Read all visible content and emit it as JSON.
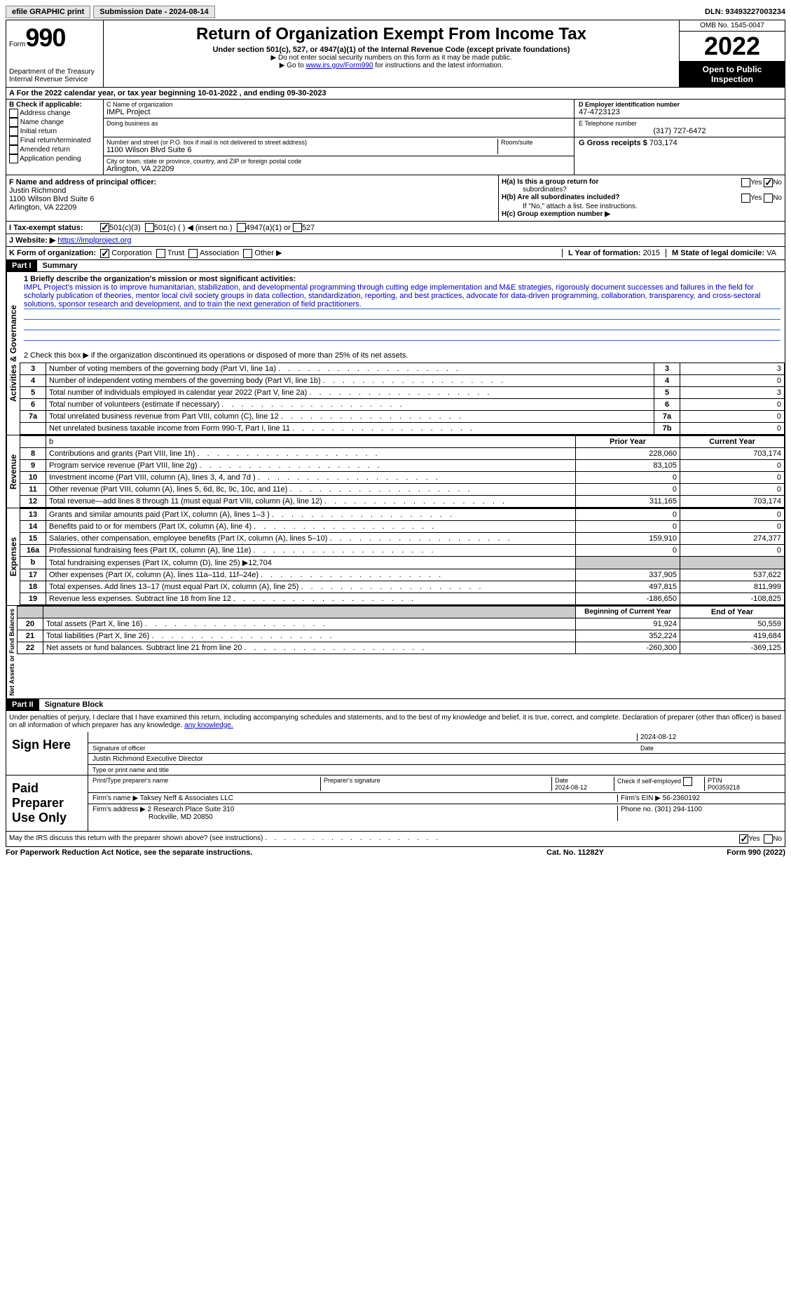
{
  "topbar": {
    "efile": "efile GRAPHIC print",
    "submission": "Submission Date - 2024-08-14",
    "dln": "DLN: 93493227003234"
  },
  "header": {
    "form_label": "Form",
    "form_no": "990",
    "dept": "Department of the Treasury",
    "irs": "Internal Revenue Service",
    "title": "Return of Organization Exempt From Income Tax",
    "subtitle": "Under section 501(c), 527, or 4947(a)(1) of the Internal Revenue Code (except private foundations)",
    "note1": "▶ Do not enter social security numbers on this form as it may be made public.",
    "note2_pre": "▶ Go to ",
    "note2_link": "www.irs.gov/Form990",
    "note2_post": " for instructions and the latest information.",
    "omb": "OMB No. 1545-0047",
    "year": "2022",
    "open": "Open to Public Inspection"
  },
  "row_a": "A For the 2022 calendar year, or tax year beginning 10-01-2022     , and ending 09-30-2023",
  "col_b": {
    "title": "B Check if applicable:",
    "items": [
      "Address change",
      "Name change",
      "Initial return",
      "Final return/terminated",
      "Amended return",
      "Application pending"
    ]
  },
  "col_c": {
    "name_label": "C Name of organization",
    "name": "IMPL Project",
    "dba": "Doing business as",
    "street_label": "Number and street (or P.O. box if mail is not delivered to street address)",
    "room": "Room/suite",
    "street": "1100 Wilson Blvd Suite 6",
    "city_label": "City or town, state or province, country, and ZIP or foreign postal code",
    "city": "Arlington, VA  22209"
  },
  "col_d": {
    "ein_label": "D Employer identification number",
    "ein": "47-4723123",
    "phone_label": "E Telephone number",
    "phone": "(317) 727-6472",
    "gross_label": "G Gross receipts $",
    "gross": "703,174"
  },
  "f": {
    "label": "F Name and address of principal officer:",
    "name": "Justin Richmond",
    "addr1": "1100 Wilson Blvd Suite 6",
    "addr2": "Arlington, VA  22209"
  },
  "h": {
    "ha": "H(a)  Is this a group return for",
    "ha2": "subordinates?",
    "hb": "H(b)  Are all subordinates included?",
    "hb2": "If \"No,\" attach a list. See instructions.",
    "hc": "H(c)  Group exemption number ▶",
    "yes": "Yes",
    "no": "No"
  },
  "i": {
    "label": "I   Tax-exempt status:",
    "opts": [
      "501(c)(3)",
      "501(c) (  ) ◀ (insert no.)",
      "4947(a)(1) or",
      "527"
    ]
  },
  "j": {
    "label": "J   Website: ▶",
    "val": "https://implproject.org"
  },
  "k": {
    "label": "K Form of organization:",
    "opts": [
      "Corporation",
      "Trust",
      "Association",
      "Other ▶"
    ]
  },
  "l": {
    "label": "L Year of formation:",
    "val": "2015"
  },
  "m": {
    "label": "M State of legal domicile:",
    "val": "VA"
  },
  "parts": {
    "p1": "Part I",
    "p1_title": "Summary",
    "p2": "Part II",
    "p2_title": "Signature Block"
  },
  "sections": {
    "ag": "Activities & Governance",
    "rev": "Revenue",
    "exp": "Expenses",
    "na": "Net Assets or Fund Balances"
  },
  "summary": {
    "q1": "1 Briefly describe the organization's mission or most significant activities:",
    "mission": "IMPL Project's mission is to improve humanitarian, stabilization, and developmental programming through cutting edge implementation and M&E strategies, rigorously document successes and failures in the field for scholarly publication of theories, mentor local civil society groups in data collection, standardization, reporting, and best practices, advocate for data-driven programming, collaboration, transparency, and cross-sectoral solutions, sponsor research and development, and to train the next generation of field practitioners.",
    "q2": "2   Check this box ▶     if the organization discontinued its operations or disposed of more than 25% of its net assets.",
    "rows_ag": [
      {
        "n": "3",
        "t": "Number of voting members of the governing body (Part VI, line 1a)",
        "k": "3",
        "v": "3"
      },
      {
        "n": "4",
        "t": "Number of independent voting members of the governing body (Part VI, line 1b)",
        "k": "4",
        "v": "0"
      },
      {
        "n": "5",
        "t": "Total number of individuals employed in calendar year 2022 (Part V, line 2a)",
        "k": "5",
        "v": "3"
      },
      {
        "n": "6",
        "t": "Total number of volunteers (estimate if necessary)",
        "k": "6",
        "v": "0"
      },
      {
        "n": "7a",
        "t": "Total unrelated business revenue from Part VIII, column (C), line 12",
        "k": "7a",
        "v": "0"
      },
      {
        "n": "",
        "t": "Net unrelated business taxable income from Form 990-T, Part I, line 11",
        "k": "7b",
        "v": "0"
      }
    ],
    "hdr_b": "b",
    "hdr_prior": "Prior Year",
    "hdr_current": "Current Year",
    "rows_rev": [
      {
        "n": "8",
        "t": "Contributions and grants (Part VIII, line 1h)",
        "p": "228,060",
        "c": "703,174"
      },
      {
        "n": "9",
        "t": "Program service revenue (Part VIII, line 2g)",
        "p": "83,105",
        "c": "0"
      },
      {
        "n": "10",
        "t": "Investment income (Part VIII, column (A), lines 3, 4, and 7d )",
        "p": "0",
        "c": "0"
      },
      {
        "n": "11",
        "t": "Other revenue (Part VIII, column (A), lines 5, 6d, 8c, 9c, 10c, and 11e)",
        "p": "0",
        "c": "0"
      },
      {
        "n": "12",
        "t": "Total revenue—add lines 8 through 11 (must equal Part VIII, column (A), line 12)",
        "p": "311,165",
        "c": "703,174"
      }
    ],
    "rows_exp": [
      {
        "n": "13",
        "t": "Grants and similar amounts paid (Part IX, column (A), lines 1–3 )",
        "p": "0",
        "c": "0"
      },
      {
        "n": "14",
        "t": "Benefits paid to or for members (Part IX, column (A), line 4)",
        "p": "0",
        "c": "0"
      },
      {
        "n": "15",
        "t": "Salaries, other compensation, employee benefits (Part IX, column (A), lines 5–10)",
        "p": "159,910",
        "c": "274,377"
      },
      {
        "n": "16a",
        "t": "Professional fundraising fees (Part IX, column (A), line 11e)",
        "p": "0",
        "c": "0"
      },
      {
        "n": "b",
        "t": "Total fundraising expenses (Part IX, column (D), line 25) ▶12,704",
        "p": "",
        "c": "",
        "shaded": true
      },
      {
        "n": "17",
        "t": "Other expenses (Part IX, column (A), lines 11a–11d, 11f–24e)",
        "p": "337,905",
        "c": "537,622"
      },
      {
        "n": "18",
        "t": "Total expenses. Add lines 13–17 (must equal Part IX, column (A), line 25)",
        "p": "497,815",
        "c": "811,999"
      },
      {
        "n": "19",
        "t": "Revenue less expenses. Subtract line 18 from line 12",
        "p": "-186,650",
        "c": "-108,825"
      }
    ],
    "hdr_begin": "Beginning of Current Year",
    "hdr_end": "End of Year",
    "rows_na": [
      {
        "n": "20",
        "t": "Total assets (Part X, line 16)",
        "p": "91,924",
        "c": "50,559"
      },
      {
        "n": "21",
        "t": "Total liabilities (Part X, line 26)",
        "p": "352,224",
        "c": "419,684"
      },
      {
        "n": "22",
        "t": "Net assets or fund balances. Subtract line 21 from line 20",
        "p": "-260,300",
        "c": "-369,125"
      }
    ]
  },
  "sig": {
    "perjury": "Under penalties of perjury, I declare that I have examined this return, including accompanying schedules and statements, and to the best of my knowledge and belief, it is true, correct, and complete. Declaration of preparer (other than officer) is based on all information of which preparer has any knowledge.",
    "sign_here": "Sign Here",
    "sig_officer": "Signature of officer",
    "date": "Date",
    "date_val": "2024-08-12",
    "name_title": "Justin Richmond  Executive Director",
    "name_label": "Type or print name and title",
    "paid": "Paid Preparer Use Only",
    "prep_name_label": "Print/Type preparer's name",
    "prep_sig_label": "Preparer's signature",
    "prep_date": "2024-08-12",
    "check_self": "Check        if self-employed",
    "ptin_label": "PTIN",
    "ptin": "P00359218",
    "firm_name_label": "Firm's name   ▶",
    "firm_name": "Taksey Neff & Associates LLC",
    "firm_ein_label": "Firm's EIN ▶",
    "firm_ein": "56-2360192",
    "firm_addr_label": "Firm's address ▶",
    "firm_addr1": "2 Research Place Suite 310",
    "firm_addr2": "Rockville, MD  20850",
    "firm_phone_label": "Phone no.",
    "firm_phone": "(301) 294-1100",
    "discuss": "May the IRS discuss this return with the preparer shown above? (see instructions)"
  },
  "footer": {
    "left": "For Paperwork Reduction Act Notice, see the separate instructions.",
    "mid": "Cat. No. 11282Y",
    "right": "Form 990 (2022)"
  }
}
